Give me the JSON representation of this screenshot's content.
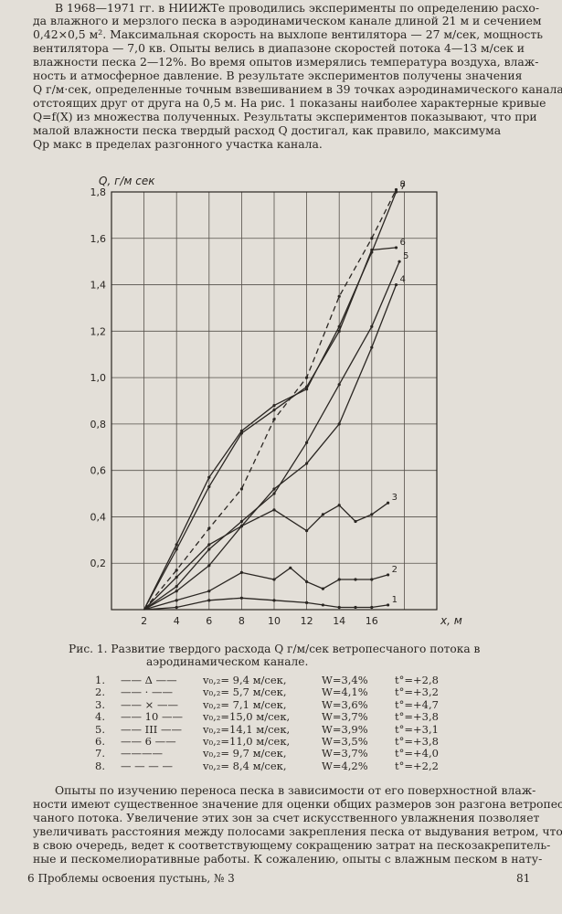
{
  "top_paragraph": [
    "В 1968—1971 гг. в НИИЖТе проводились эксперименты по определению расхо-",
    "да влажного и мерзлого песка в аэродинамическом канале длиной 21 м и сечением",
    "0,42×0,5 м². Максимальная скорость на выхлопе вентилятора — 27 м/сек, мощность",
    "вентилятора — 7,0 кв. Опыты велись в диапазоне скоростей потока 4—13 м/сек и",
    "влажности песка 2—12%. Во время опытов измерялись температура воздуха, влаж-",
    "ность и атмосферное давление. В результате экспериментов получены значения",
    "Q г/м·сек, определенные точным взвешиванием в 39 точках аэродинамического канала,",
    "отстоящих друг от друга на 0,5 м. На рис. 1 показаны наиболее характерные кривые",
    "Q=f(X) из множества полученных. Результаты экспериментов показывают, что при",
    "малой влажности песка твердый расход Q достигал, как правило, максимума",
    "Qр макс в пределах разгонного участка канала."
  ],
  "caption": [
    "Рис. 1. Развитие твердого расхода Q г/м/сек ветропесчаного потока в",
    "аэродинамическом канале."
  ],
  "legend": [
    {
      "n": "1.",
      "mark": "—— Δ ——",
      "v": "v₀,₂= 9,4 м/сек,",
      "w": "W=3,4%",
      "t": "t°=+2,8"
    },
    {
      "n": "2.",
      "mark": "—— · ——",
      "v": "v₀,₂= 5,7 м/сек,",
      "w": "W=4,1%",
      "t": "t°=+3,2"
    },
    {
      "n": "3.",
      "mark": "—— × ——",
      "v": "v₀,₂= 7,1 м/сек,",
      "w": "W=3,6%",
      "t": "t°=+4,7"
    },
    {
      "n": "4.",
      "mark": "—— 10 ——",
      "v": "v₀,₂=15,0 м/сек,",
      "w": "W=3,7%",
      "t": "t°=+3,8"
    },
    {
      "n": "5.",
      "mark": "—— III ——",
      "v": "v₀,₂=14,1 м/сек,",
      "w": "W=3,9%",
      "t": "t°=+3,1"
    },
    {
      "n": "6.",
      "mark": "—— 6 ——",
      "v": "v₀,₂=11,0 м/сек,",
      "w": "W=3,5%",
      "t": "t°=+3,8"
    },
    {
      "n": "7.",
      "mark": "————",
      "v": "v₀,₂= 9,7 м/сек,",
      "w": "W=3,7%",
      "t": "t°=+4,0"
    },
    {
      "n": "8.",
      "mark": "— — — —",
      "v": "v₀,₂= 8,4 м/сек,",
      "w": "W=4,2%",
      "t": "t°=+2,2"
    }
  ],
  "bottom_paragraph": [
    "Опыты по изучению переноса песка в зависимости от его поверхностной влаж-",
    "ности имеют существенное значение для оценки общих размеров зон разгона ветропес-",
    "чаного потока. Увеличение этих зон за счет искусственного увлажнения позволяет",
    "увеличивать расстояния между полосами закрепления песка от выдувания ветром, что,",
    "в свою очередь, ведет к соответствующему сокращению затрат на пескозакрепитель-",
    "ные и пескомелиоративные работы. К сожалению, опыты с влажным песком в нату-"
  ],
  "footer": {
    "left": "6 Проблемы освоения пустынь, № 3",
    "right": "81"
  },
  "chart_data": {
    "type": "line",
    "ylabel": "Q, г/м сек",
    "xlabel": "x, м",
    "xlim": [
      0,
      20
    ],
    "ylim": [
      0,
      1.8
    ],
    "x_ticks": [
      "2",
      "4",
      "6",
      "8",
      "10",
      "12",
      "14",
      "16"
    ],
    "y_ticks": [
      "0,2",
      "0,4",
      "0,6",
      "0,8",
      "1,0",
      "1,2",
      "1,4",
      "1,6",
      "1,8"
    ],
    "grid": true,
    "series": [
      {
        "name": "1",
        "style": "solid",
        "x": [
          2,
          4,
          6,
          8,
          10,
          12,
          13,
          14,
          15,
          16,
          17
        ],
        "y": [
          0,
          0.01,
          0.04,
          0.05,
          0.04,
          0.03,
          0.02,
          0.01,
          0.01,
          0.01,
          0.02
        ]
      },
      {
        "name": "2",
        "style": "solid",
        "x": [
          2,
          4,
          6,
          8,
          10,
          11,
          12,
          13,
          14,
          15,
          16,
          17
        ],
        "y": [
          0,
          0.04,
          0.08,
          0.16,
          0.13,
          0.18,
          0.12,
          0.09,
          0.13,
          0.13,
          0.13,
          0.15
        ]
      },
      {
        "name": "3",
        "style": "solid",
        "x": [
          2,
          4,
          6,
          8,
          10,
          12,
          13,
          14,
          15,
          16,
          17
        ],
        "y": [
          0,
          0.14,
          0.28,
          0.36,
          0.43,
          0.34,
          0.41,
          0.45,
          0.38,
          0.41,
          0.46
        ]
      },
      {
        "name": "4",
        "style": "solid",
        "x": [
          2,
          4,
          6,
          8,
          10,
          12,
          14,
          16,
          17.5
        ],
        "y": [
          0,
          0.08,
          0.19,
          0.36,
          0.52,
          0.63,
          0.8,
          1.13,
          1.4
        ]
      },
      {
        "name": "5",
        "style": "solid",
        "x": [
          2,
          4,
          6,
          8,
          10,
          12,
          14,
          16,
          17.7
        ],
        "y": [
          0,
          0.1,
          0.26,
          0.38,
          0.5,
          0.72,
          0.97,
          1.22,
          1.5
        ]
      },
      {
        "name": "6",
        "style": "solid",
        "x": [
          2,
          4,
          6,
          8,
          10,
          12,
          14,
          16,
          17.5
        ],
        "y": [
          0,
          0.26,
          0.53,
          0.76,
          0.86,
          0.96,
          1.2,
          1.55,
          1.56
        ]
      },
      {
        "name": "7",
        "style": "solid",
        "x": [
          2,
          4,
          6,
          8,
          10,
          12,
          14,
          16,
          17.5
        ],
        "y": [
          0,
          0.28,
          0.57,
          0.77,
          0.88,
          0.95,
          1.22,
          1.54,
          1.8
        ]
      },
      {
        "name": "8",
        "style": "dashed",
        "x": [
          2,
          4,
          6,
          8,
          10,
          12,
          14,
          16,
          17.5
        ],
        "y": [
          0,
          0.17,
          0.35,
          0.52,
          0.82,
          1.0,
          1.35,
          1.6,
          1.81
        ]
      }
    ]
  }
}
